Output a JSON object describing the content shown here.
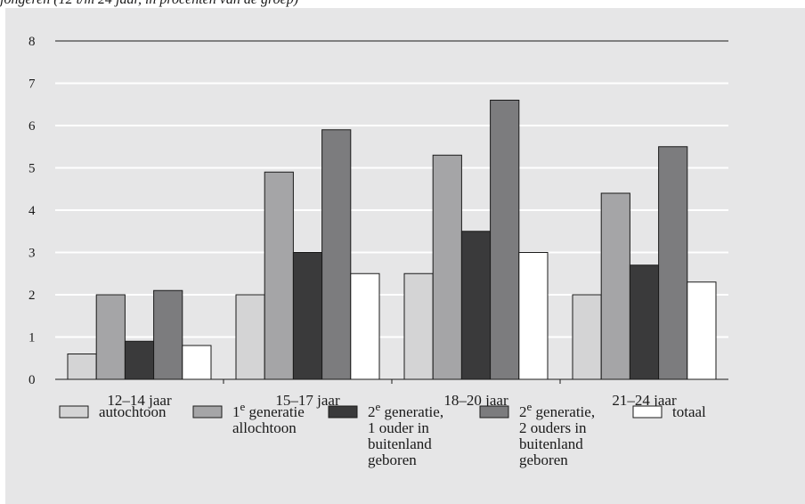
{
  "caption": "jongeren (12 t/m 24 jaar, in procenten van de groep)",
  "chart_data": {
    "type": "bar",
    "title": "",
    "xlabel": "",
    "ylabel": "",
    "ylim": [
      0,
      8
    ],
    "yticks": [
      0,
      1,
      2,
      3,
      4,
      5,
      6,
      7,
      8
    ],
    "grid": true,
    "legend_position": "bottom",
    "categories": [
      "12–14 jaar",
      "15–17 jaar",
      "18–20 jaar",
      "21–24 jaar"
    ],
    "series": [
      {
        "name": "autochtoon",
        "label_lines": [
          "autochtoon"
        ],
        "color": "#d4d4d5",
        "values": [
          0.6,
          2.0,
          2.5,
          2.0
        ]
      },
      {
        "name": "1e generatie allochtoon",
        "label_lines": [
          "1e generatie",
          "allochtoon"
        ],
        "color": "#a5a5a7",
        "values": [
          2.0,
          4.9,
          5.3,
          4.4
        ]
      },
      {
        "name": "2e generatie, 1 ouder in buitenland geboren",
        "label_lines": [
          "2e generatie,",
          "1 ouder in",
          "buitenland",
          "geboren"
        ],
        "color": "#3a3a3b",
        "values": [
          0.9,
          3.0,
          3.5,
          2.7
        ]
      },
      {
        "name": "2e generatie, 2 ouders in buitenland geboren",
        "label_lines": [
          "2e generatie,",
          "2 ouders in",
          "buitenland",
          "geboren"
        ],
        "color": "#7c7c7e",
        "values": [
          2.1,
          5.9,
          6.6,
          5.5
        ]
      },
      {
        "name": "totaal",
        "label_lines": [
          "totaal"
        ],
        "color": "#ffffff",
        "values": [
          0.8,
          2.5,
          3.0,
          2.3
        ]
      }
    ]
  }
}
